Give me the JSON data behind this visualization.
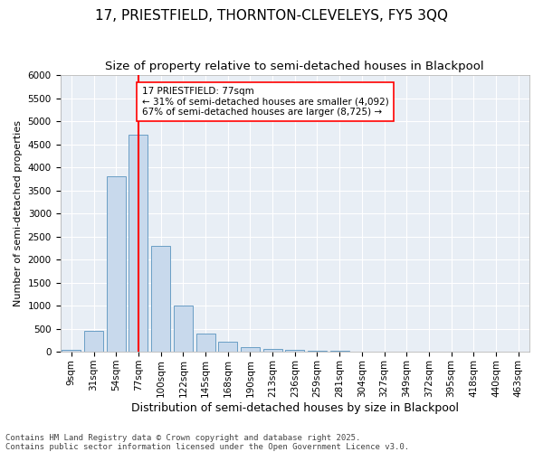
{
  "title": "17, PRIESTFIELD, THORNTON-CLEVELEYS, FY5 3QQ",
  "subtitle": "Size of property relative to semi-detached houses in Blackpool",
  "xlabel": "Distribution of semi-detached houses by size in Blackpool",
  "ylabel": "Number of semi-detached properties",
  "categories": [
    "9sqm",
    "31sqm",
    "54sqm",
    "77sqm",
    "100sqm",
    "122sqm",
    "145sqm",
    "168sqm",
    "190sqm",
    "213sqm",
    "236sqm",
    "259sqm",
    "281sqm",
    "304sqm",
    "327sqm",
    "349sqm",
    "372sqm",
    "395sqm",
    "418sqm",
    "440sqm",
    "463sqm"
  ],
  "values": [
    50,
    450,
    3800,
    4700,
    2300,
    1000,
    400,
    220,
    100,
    70,
    50,
    30,
    20,
    5,
    3,
    2,
    1,
    1,
    1,
    0,
    0
  ],
  "bar_color": "#c8d9ec",
  "bar_edge_color": "#6a9ec5",
  "vline_x_index": 3,
  "vline_color": "red",
  "annotation_text": "17 PRIESTFIELD: 77sqm\n← 31% of semi-detached houses are smaller (4,092)\n67% of semi-detached houses are larger (8,725) →",
  "ylim": [
    0,
    6000
  ],
  "yticks": [
    0,
    500,
    1000,
    1500,
    2000,
    2500,
    3000,
    3500,
    4000,
    4500,
    5000,
    5500,
    6000
  ],
  "background_color": "#e8eef5",
  "footer_text": "Contains HM Land Registry data © Crown copyright and database right 2025.\nContains public sector information licensed under the Open Government Licence v3.0.",
  "title_fontsize": 11,
  "subtitle_fontsize": 9.5,
  "xlabel_fontsize": 9,
  "ylabel_fontsize": 8,
  "tick_fontsize": 7.5,
  "annotation_fontsize": 7.5,
  "footer_fontsize": 6.5
}
